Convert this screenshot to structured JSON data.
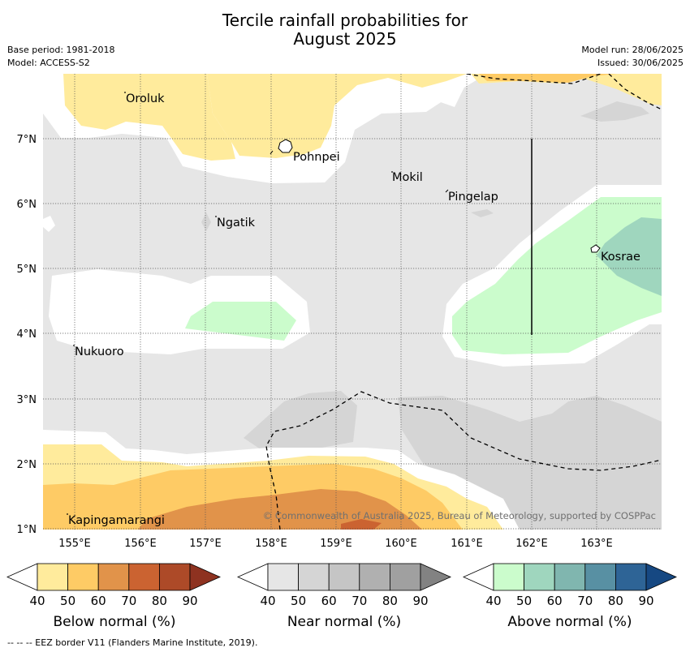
{
  "title_line1": "Tercile rainfall probabilities for",
  "title_line2": "August 2025",
  "meta": {
    "base_period": "Base period: 1981-2018",
    "model": "Model: ACCESS-S2",
    "model_run": "Model run: 28/06/2025",
    "issued": "Issued: 30/06/2025"
  },
  "map": {
    "lon_ticks": [
      "155°E",
      "156°E",
      "157°E",
      "158°E",
      "159°E",
      "160°E",
      "161°E",
      "162°E",
      "163°E"
    ],
    "lat_ticks": [
      "7°N",
      "6°N",
      "5°N",
      "4°N",
      "3°N",
      "2°N",
      "1°N"
    ],
    "places": {
      "oroluk": "Oroluk",
      "pohnpei": "Pohnpei",
      "mokil": "Mokil",
      "pingelap": "Pingelap",
      "ngatik": "Ngatik",
      "kosrae": "Kosrae",
      "nukuoro": "Nukuoro",
      "kapingamarangi": "Kapingamarangi"
    },
    "credit": "© Commonwealth of Australia 2025, Bureau of Meteorology, supported by COSPPac"
  },
  "colorbars": {
    "ticks": [
      "40",
      "50",
      "60",
      "70",
      "80",
      "90"
    ],
    "below": {
      "title": "Below normal (%)",
      "colors": [
        "#ffffff",
        "#ffeb9c",
        "#fecb65",
        "#e1934a",
        "#cb6331",
        "#ad4a28",
        "#8e3220"
      ]
    },
    "near": {
      "title": "Near normal (%)",
      "colors": [
        "#ffffff",
        "#e6e6e6",
        "#d5d5d5",
        "#c5c5c5",
        "#b0b0b0",
        "#a0a0a0",
        "#828282"
      ]
    },
    "above": {
      "title": "Above normal (%)",
      "colors": [
        "#ffffff",
        "#cbfccc",
        "#9fd6be",
        "#80b6af",
        "#5890a3",
        "#2e6496",
        "#164882"
      ]
    }
  },
  "footer": "-- -- -- EEZ border V11 (Flanders Marine Institute, 2019)."
}
